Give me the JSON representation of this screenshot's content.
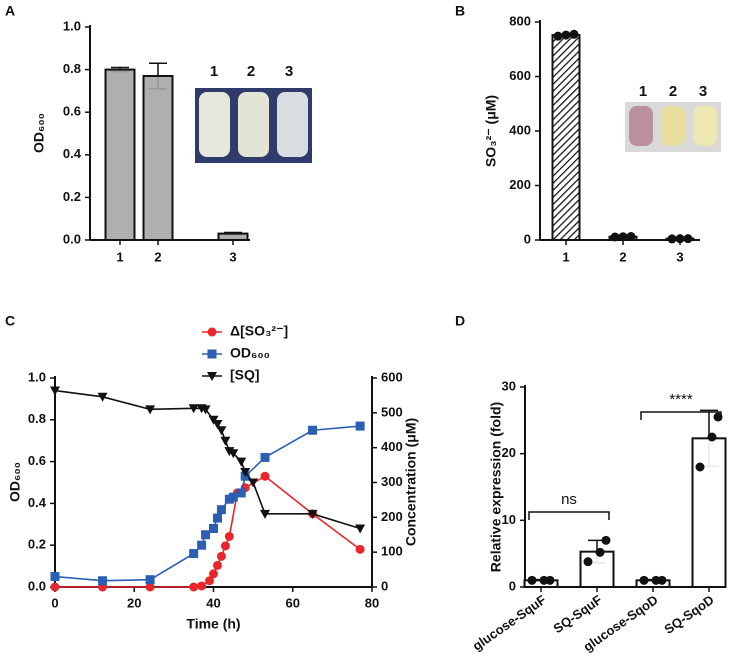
{
  "chart_data": [
    {
      "panel": "A",
      "type": "bar",
      "categories": [
        "1",
        "2",
        "3"
      ],
      "values": [
        0.8,
        0.77,
        0.03
      ],
      "errors": [
        0.01,
        0.06,
        0.005
      ],
      "color": "#a6a6a6",
      "ylabel": "OD₆₀₀",
      "ylim": [
        0,
        1
      ],
      "yticks": [
        {
          "value": 0,
          "label": "0.0"
        },
        0.2,
        0.4,
        0.6,
        0.8,
        {
          "value": 1,
          "label": "1.0"
        }
      ],
      "inset_labels": [
        "1",
        "2",
        "3"
      ]
    },
    {
      "panel": "B",
      "type": "bar",
      "categories": [
        "1",
        "2",
        "3"
      ],
      "values": [
        752,
        12,
        5
      ],
      "points": [
        [
          748,
          752,
          755
        ],
        [
          11,
          12,
          13
        ],
        [
          4,
          5,
          5
        ]
      ],
      "color": "#ffffff",
      "hatch": true,
      "ylabel": "SO₃²⁻ (μM)",
      "ylim": [
        0,
        800
      ],
      "yticks": [
        0,
        200,
        400,
        600,
        800
      ],
      "inset_labels": [
        "1",
        "2",
        "3"
      ]
    },
    {
      "panel": "C",
      "type": "line",
      "xlabel": "Time (h)",
      "ylabel": "OD₆₀₀",
      "y2label": "Concentration (μM)",
      "xlim": [
        0,
        80
      ],
      "xticks": [
        0,
        20,
        40,
        60,
        80
      ],
      "ylim": [
        0,
        1
      ],
      "yticks": [
        {
          "value": 0,
          "label": "0.0"
        },
        0.2,
        0.4,
        0.6,
        0.8,
        {
          "value": 1,
          "label": "1.0"
        }
      ],
      "y2lim": [
        0,
        600
      ],
      "y2ticks": [
        0,
        100,
        200,
        300,
        400,
        500,
        600
      ],
      "series": [
        {
          "name": "Δ[SO₃²⁻]",
          "color": "#e8262b",
          "marker": "circle",
          "axis": "y2",
          "x": [
            0,
            12,
            24,
            35,
            37,
            39,
            40,
            41,
            42,
            43,
            44,
            46,
            48,
            53,
            65,
            77
          ],
          "values": [
            0,
            0,
            0,
            0,
            3,
            18,
            38,
            62,
            88,
            118,
            145,
            270,
            285,
            318,
            210,
            108
          ]
        },
        {
          "name": "OD₆₀₀",
          "color": "#2b5fb4",
          "marker": "square",
          "x": [
            0,
            12,
            24,
            35,
            37,
            38,
            40,
            41,
            42,
            44,
            45,
            47,
            48,
            53,
            65,
            77
          ],
          "values": [
            0.05,
            0.03,
            0.035,
            0.16,
            0.2,
            0.25,
            0.28,
            0.33,
            0.37,
            0.42,
            0.43,
            0.45,
            0.53,
            0.62,
            0.75,
            0.77
          ]
        },
        {
          "name": "[SQ]",
          "color": "#111111",
          "marker": "triangle",
          "axis": "y2",
          "x": [
            0,
            12,
            24,
            35,
            37,
            38,
            40,
            41,
            42,
            43,
            44,
            45,
            47,
            48,
            50,
            53,
            65,
            77
          ],
          "values": [
            564,
            546,
            510,
            513,
            513,
            510,
            480,
            468,
            450,
            420,
            390,
            384,
            360,
            330,
            300,
            210,
            210,
            168
          ]
        }
      ]
    },
    {
      "panel": "D",
      "type": "bar",
      "categories": [
        "glucose-SquF",
        "SQ-SquF",
        "glucose-SqoD",
        "SQ-SqoD"
      ],
      "values": [
        1,
        5.3,
        1,
        22.3
      ],
      "errors": [
        0.1,
        1.7,
        0.1,
        4.2
      ],
      "points": [
        [
          1,
          1,
          1
        ],
        [
          3.8,
          5.2,
          7
        ],
        [
          1,
          1,
          1
        ],
        [
          18,
          22.5,
          25.5
        ]
      ],
      "color": "#ffffff",
      "ylabel": "Relative expression (fold)",
      "ylim": [
        0,
        30
      ],
      "yticks": [
        0,
        10,
        20,
        30
      ],
      "annotations": [
        "ns",
        "****"
      ]
    }
  ]
}
